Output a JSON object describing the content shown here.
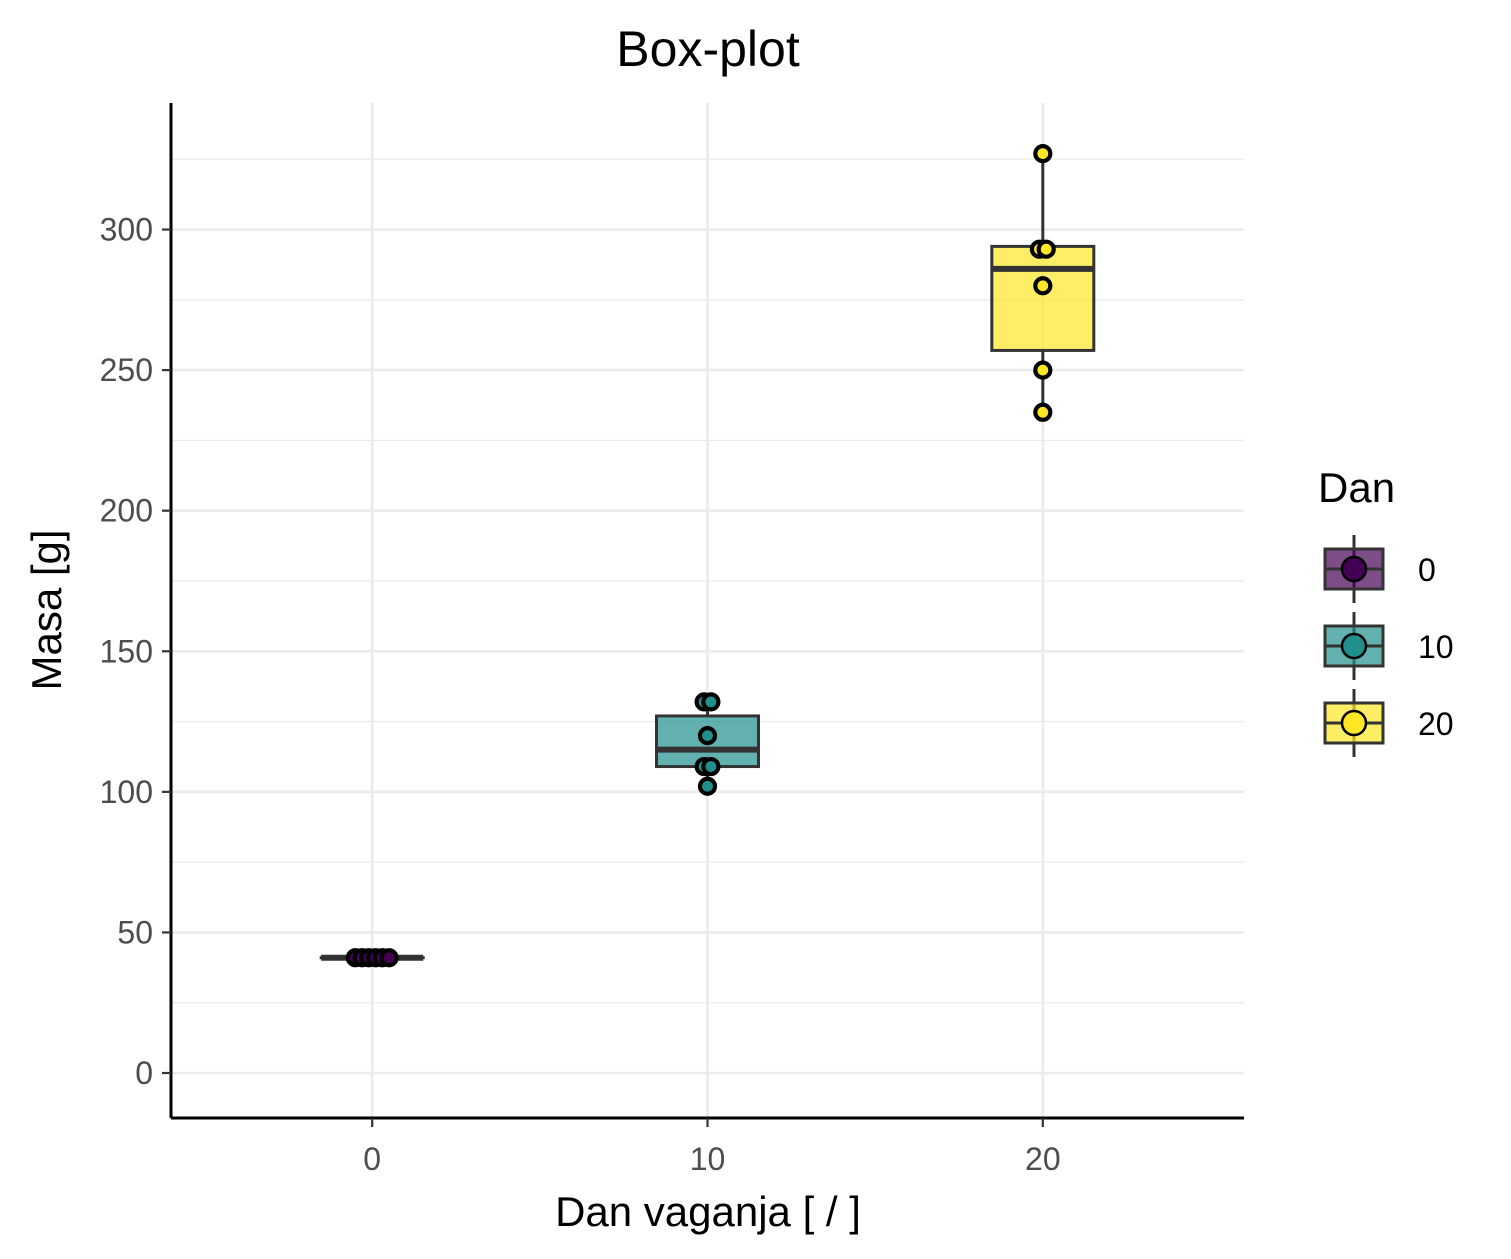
{
  "chart_data": {
    "type": "box",
    "title": "Box-plot",
    "xlabel": "Dan vaganja [ / ]",
    "ylabel": "Masa [g]",
    "x_ticks": [
      0,
      10,
      20
    ],
    "y_ticks": [
      0,
      50,
      100,
      150,
      200,
      250,
      300
    ],
    "xlim": [
      -6,
      26
    ],
    "ylim": [
      -16,
      345
    ],
    "grid": true,
    "legend": {
      "title": "Dan",
      "placement": "right",
      "entries": [
        {
          "label": "0",
          "color": "#440154"
        },
        {
          "label": "10",
          "color": "#21908c"
        },
        {
          "label": "20",
          "color": "#fde725"
        }
      ]
    },
    "groups": [
      {
        "x": 0,
        "label": "0",
        "color": "#440154",
        "min": 41,
        "q1": 41,
        "median": 41,
        "q3": 41,
        "max": 41,
        "points": [
          {
            "dx": -1.25,
            "y": 41
          },
          {
            "dx": -0.75,
            "y": 41
          },
          {
            "dx": -0.25,
            "y": 41
          },
          {
            "dx": 0.25,
            "y": 41
          },
          {
            "dx": 0.75,
            "y": 41
          },
          {
            "dx": 1.25,
            "y": 41
          }
        ]
      },
      {
        "x": 10,
        "label": "10",
        "color": "#21908c",
        "min": 102,
        "q1": 109,
        "median": 115,
        "q3": 127,
        "max": 132,
        "points": [
          {
            "dx": -0.25,
            "y": 132
          },
          {
            "dx": 0.25,
            "y": 132
          },
          {
            "dx": 0,
            "y": 120
          },
          {
            "dx": -0.25,
            "y": 109
          },
          {
            "dx": 0.25,
            "y": 109
          },
          {
            "dx": 0,
            "y": 102
          }
        ]
      },
      {
        "x": 20,
        "label": "20",
        "color": "#fde725",
        "min": 235,
        "q1": 257,
        "median": 286,
        "q3": 294,
        "max": 327,
        "points": [
          {
            "dx": 0,
            "y": 327
          },
          {
            "dx": -0.25,
            "y": 293
          },
          {
            "dx": 0.25,
            "y": 293
          },
          {
            "dx": 0,
            "y": 280
          },
          {
            "dx": 0,
            "y": 250
          },
          {
            "dx": 0,
            "y": 235
          }
        ]
      }
    ]
  }
}
